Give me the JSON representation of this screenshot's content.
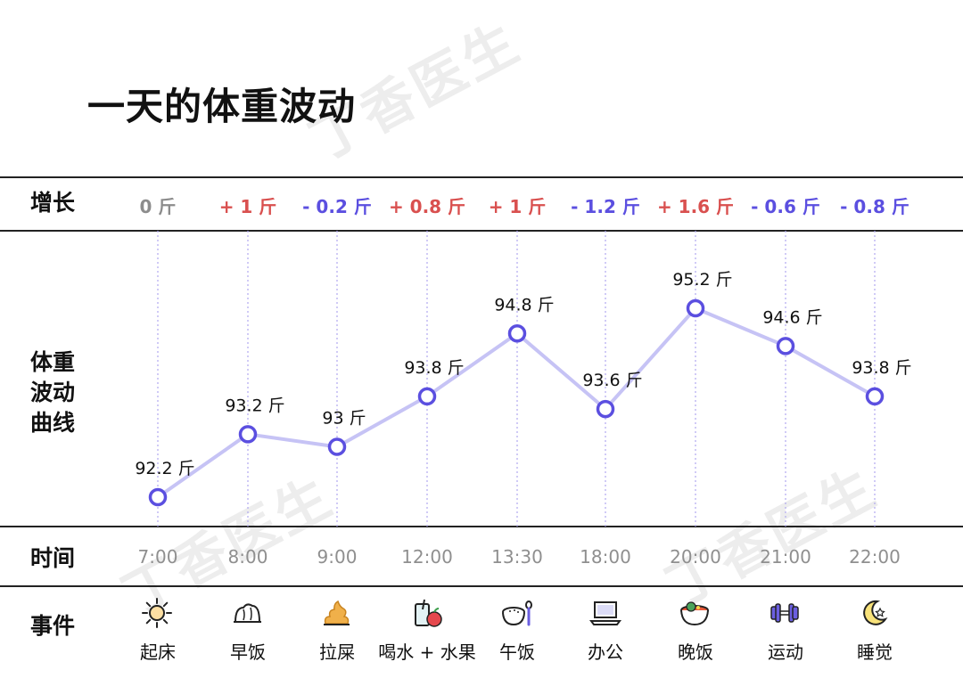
{
  "title": "一天的体重波动",
  "watermark": "丁香医生",
  "row_labels": {
    "increment": "增长",
    "curve": [
      "体重",
      "波动",
      "曲线"
    ],
    "time": "时间",
    "event": "事件"
  },
  "colors": {
    "gain": "#d9504f",
    "loss": "#5b4fe0",
    "neutral": "#8c8c8c",
    "line": "#c6c3f5",
    "marker": "#5b4fe0",
    "grid": "#b0a8f0"
  },
  "increments": [
    {
      "text": "0 斤",
      "kind": "neutral"
    },
    {
      "text": "+ 1 斤",
      "kind": "gain"
    },
    {
      "text": "- 0.2 斤",
      "kind": "loss"
    },
    {
      "text": "+ 0.8 斤",
      "kind": "gain"
    },
    {
      "text": "+ 1 斤",
      "kind": "gain"
    },
    {
      "text": "- 1.2 斤",
      "kind": "loss"
    },
    {
      "text": "+ 1.6 斤",
      "kind": "gain"
    },
    {
      "text": "- 0.6 斤",
      "kind": "loss"
    },
    {
      "text": "- 0.8 斤",
      "kind": "loss"
    }
  ],
  "events": [
    {
      "label": "起床",
      "icon": "sun-icon"
    },
    {
      "label": "早饭",
      "icon": "bun-icon"
    },
    {
      "label": "拉屎",
      "icon": "poop-icon"
    },
    {
      "label": "喝水 + 水果",
      "icon": "drink-apple-icon"
    },
    {
      "label": "午饭",
      "icon": "rice-bowl-icon"
    },
    {
      "label": "办公",
      "icon": "laptop-icon"
    },
    {
      "label": "晚饭",
      "icon": "soup-bowl-icon"
    },
    {
      "label": "运动",
      "icon": "dumbbell-icon"
    },
    {
      "label": "睡觉",
      "icon": "moon-icon"
    }
  ],
  "chart_data": {
    "type": "line",
    "x": [
      "7:00",
      "8:00",
      "9:00",
      "12:00",
      "13:30",
      "18:00",
      "20:00",
      "21:00",
      "22:00"
    ],
    "series": [
      {
        "values": [
          92.2,
          93.2,
          93.0,
          93.8,
          94.8,
          93.6,
          95.2,
          94.6,
          93.8
        ],
        "point_labels": [
          "92.2 斤",
          "93.2 斤",
          "93 斤",
          "93.8 斤",
          "94.8 斤",
          "93.6 斤",
          "95.2 斤",
          "94.6 斤",
          "93.8 斤"
        ]
      }
    ],
    "ylim": [
      92.0,
      95.6
    ],
    "grid": "vertical dotted lines per time point"
  }
}
